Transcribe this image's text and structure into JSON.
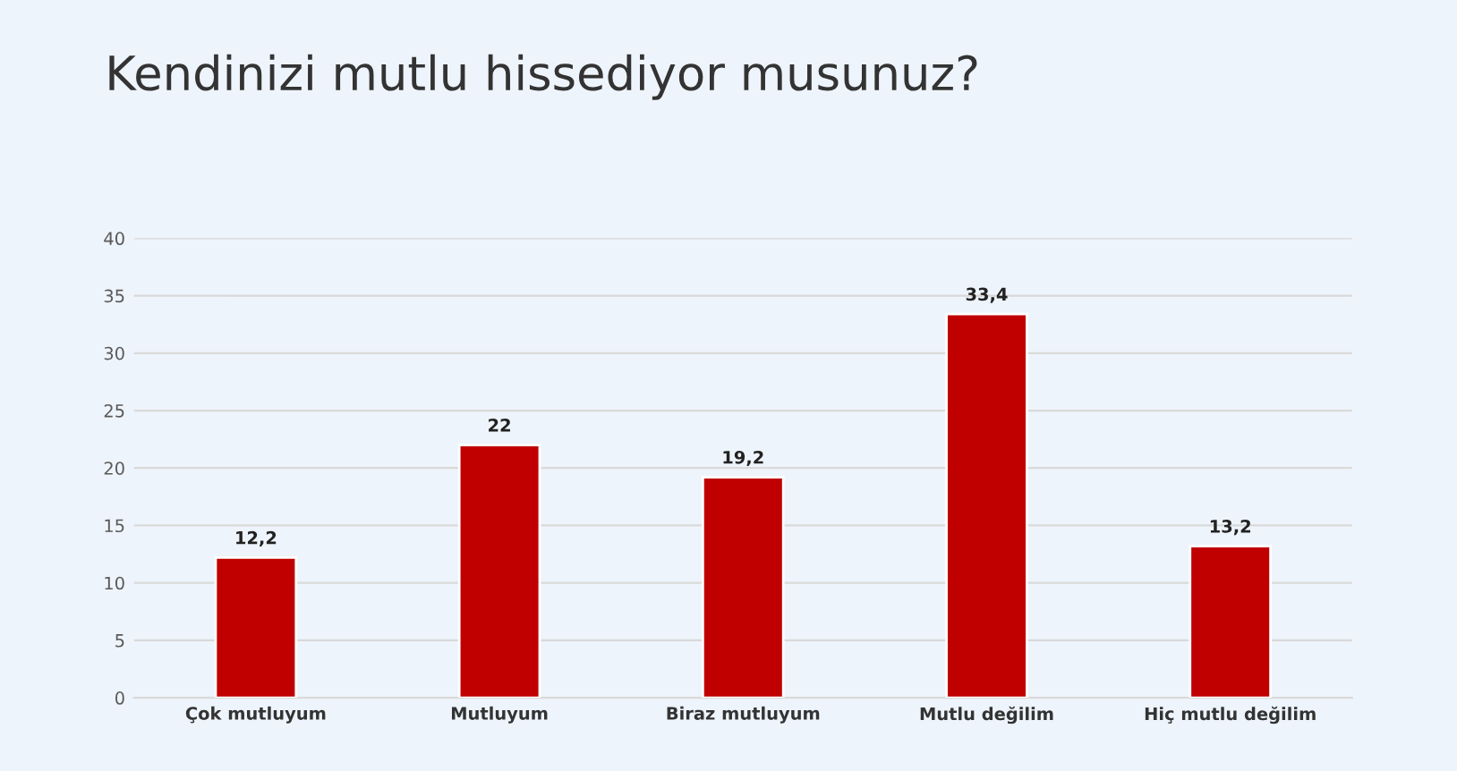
{
  "chart_data": {
    "type": "bar",
    "title": "Kendinizi mutlu hissediyor musunuz?",
    "categories": [
      "Çok mutluyum",
      "Mutluyum",
      "Biraz mutluyum",
      "Mutlu değilim",
      "Hiç mutlu değilim"
    ],
    "values": [
      12.2,
      22,
      19.2,
      33.4,
      13.2
    ],
    "value_labels": [
      "12,2",
      "22",
      "19,2",
      "33,4",
      "13,2"
    ],
    "color": "#c00000",
    "ylim": [
      0,
      40
    ],
    "yticks": [
      0,
      5,
      10,
      15,
      20,
      25,
      30,
      35,
      40
    ],
    "grid": "y",
    "legend": false
  }
}
